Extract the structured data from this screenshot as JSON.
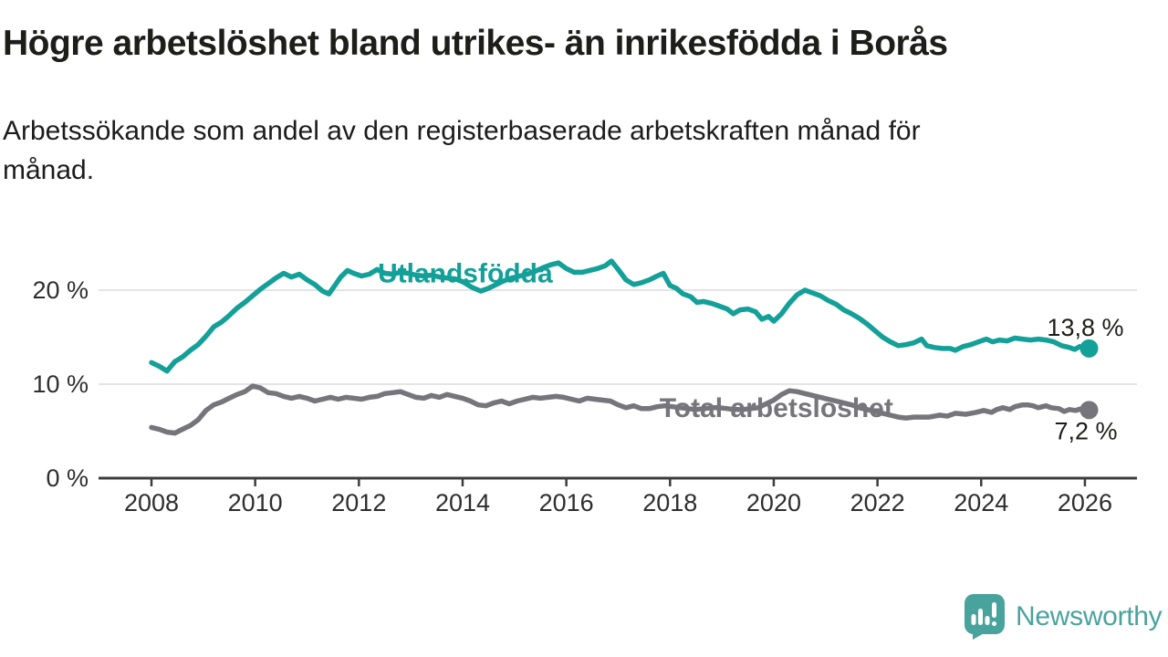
{
  "chart_data": {
    "type": "line",
    "title": "Högre arbetslöshet bland utrikes- än inrikesfödda i Borås",
    "subtitle_lines": [
      "Arbetssökande som andel av den registerbaserade arbetskraften månad för",
      "månad."
    ],
    "unit": "%",
    "xlabel": "",
    "ylabel": "",
    "xlim": [
      2007.9,
      2027.0
    ],
    "ylim": [
      0,
      25
    ],
    "grid": "horizontal",
    "x_ticks": [
      2008,
      2010,
      2012,
      2014,
      2016,
      2018,
      2020,
      2022,
      2024,
      2026
    ],
    "y_ticks": [
      {
        "value": 0,
        "label": "0 %"
      },
      {
        "value": 10,
        "label": "10 %"
      },
      {
        "value": 20,
        "label": "20 %"
      }
    ],
    "series": [
      {
        "name": "Utlandsfödda",
        "slug": "utlandsfodda",
        "color": "#13a098",
        "end_label": "13,8 %",
        "end_value": 13.8,
        "end_label_side": "above",
        "label_at": {
          "x": 2014.05,
          "y": 21.8
        },
        "points": [
          [
            2008.0,
            12.3
          ],
          [
            2008.15,
            11.9
          ],
          [
            2008.3,
            11.4
          ],
          [
            2008.45,
            12.4
          ],
          [
            2008.6,
            12.9
          ],
          [
            2008.75,
            13.6
          ],
          [
            2008.9,
            14.2
          ],
          [
            2009.05,
            15.1
          ],
          [
            2009.2,
            16.1
          ],
          [
            2009.35,
            16.6
          ],
          [
            2009.5,
            17.3
          ],
          [
            2009.65,
            18.1
          ],
          [
            2009.8,
            18.7
          ],
          [
            2009.95,
            19.4
          ],
          [
            2010.1,
            20.1
          ],
          [
            2010.25,
            20.7
          ],
          [
            2010.4,
            21.3
          ],
          [
            2010.55,
            21.8
          ],
          [
            2010.7,
            21.4
          ],
          [
            2010.85,
            21.7
          ],
          [
            2011.0,
            21.1
          ],
          [
            2011.15,
            20.6
          ],
          [
            2011.3,
            19.9
          ],
          [
            2011.42,
            19.6
          ],
          [
            2011.55,
            20.6
          ],
          [
            2011.65,
            21.4
          ],
          [
            2011.78,
            22.1
          ],
          [
            2011.9,
            21.8
          ],
          [
            2012.05,
            21.5
          ],
          [
            2012.2,
            21.7
          ],
          [
            2012.35,
            22.2
          ],
          [
            2012.5,
            21.8
          ],
          [
            2012.65,
            21.7
          ],
          [
            2012.8,
            21.9
          ],
          [
            2012.95,
            21.8
          ],
          [
            2013.1,
            21.6
          ],
          [
            2013.25,
            21.5
          ],
          [
            2013.4,
            21.6
          ],
          [
            2013.55,
            21.4
          ],
          [
            2013.7,
            21.3
          ],
          [
            2013.85,
            21.2
          ],
          [
            2014.0,
            20.9
          ],
          [
            2014.18,
            20.3
          ],
          [
            2014.35,
            19.9
          ],
          [
            2014.5,
            20.2
          ],
          [
            2014.65,
            20.6
          ],
          [
            2014.8,
            21.0
          ],
          [
            2014.95,
            21.3
          ],
          [
            2015.1,
            21.5
          ],
          [
            2015.25,
            21.7
          ],
          [
            2015.4,
            22.0
          ],
          [
            2015.55,
            22.4
          ],
          [
            2015.7,
            22.7
          ],
          [
            2015.85,
            22.9
          ],
          [
            2016.0,
            22.3
          ],
          [
            2016.15,
            21.9
          ],
          [
            2016.3,
            21.9
          ],
          [
            2016.45,
            22.1
          ],
          [
            2016.6,
            22.3
          ],
          [
            2016.75,
            22.6
          ],
          [
            2016.87,
            23.1
          ],
          [
            2017.0,
            22.2
          ],
          [
            2017.15,
            21.1
          ],
          [
            2017.3,
            20.6
          ],
          [
            2017.45,
            20.8
          ],
          [
            2017.6,
            21.1
          ],
          [
            2017.75,
            21.5
          ],
          [
            2017.87,
            21.8
          ],
          [
            2018.0,
            20.5
          ],
          [
            2018.12,
            20.2
          ],
          [
            2018.25,
            19.6
          ],
          [
            2018.4,
            19.3
          ],
          [
            2018.52,
            18.7
          ],
          [
            2018.65,
            18.8
          ],
          [
            2018.8,
            18.6
          ],
          [
            2018.95,
            18.3
          ],
          [
            2019.1,
            18.0
          ],
          [
            2019.22,
            17.5
          ],
          [
            2019.35,
            17.9
          ],
          [
            2019.5,
            18.0
          ],
          [
            2019.65,
            17.7
          ],
          [
            2019.77,
            16.9
          ],
          [
            2019.9,
            17.2
          ],
          [
            2020.0,
            16.7
          ],
          [
            2020.15,
            17.5
          ],
          [
            2020.3,
            18.6
          ],
          [
            2020.45,
            19.5
          ],
          [
            2020.6,
            20.0
          ],
          [
            2020.75,
            19.7
          ],
          [
            2020.9,
            19.4
          ],
          [
            2021.05,
            18.9
          ],
          [
            2021.2,
            18.5
          ],
          [
            2021.35,
            17.9
          ],
          [
            2021.5,
            17.5
          ],
          [
            2021.65,
            17.0
          ],
          [
            2021.8,
            16.4
          ],
          [
            2021.95,
            15.7
          ],
          [
            2022.1,
            15.0
          ],
          [
            2022.25,
            14.5
          ],
          [
            2022.4,
            14.1
          ],
          [
            2022.55,
            14.2
          ],
          [
            2022.7,
            14.4
          ],
          [
            2022.85,
            14.8
          ],
          [
            2022.95,
            14.1
          ],
          [
            2023.1,
            13.9
          ],
          [
            2023.25,
            13.8
          ],
          [
            2023.4,
            13.8
          ],
          [
            2023.5,
            13.6
          ],
          [
            2023.65,
            14.0
          ],
          [
            2023.8,
            14.2
          ],
          [
            2023.95,
            14.5
          ],
          [
            2024.1,
            14.8
          ],
          [
            2024.22,
            14.5
          ],
          [
            2024.35,
            14.7
          ],
          [
            2024.5,
            14.6
          ],
          [
            2024.65,
            14.9
          ],
          [
            2024.8,
            14.8
          ],
          [
            2024.95,
            14.7
          ],
          [
            2025.1,
            14.8
          ],
          [
            2025.25,
            14.7
          ],
          [
            2025.4,
            14.5
          ],
          [
            2025.55,
            14.1
          ],
          [
            2025.7,
            13.9
          ],
          [
            2025.8,
            13.7
          ],
          [
            2025.9,
            14.0
          ],
          [
            2026.0,
            13.9
          ],
          [
            2026.08,
            13.8
          ]
        ]
      },
      {
        "name": "Total arbetslöshet",
        "slug": "total-arbetsloshet",
        "color": "#76757c",
        "end_label": "7,2 %",
        "end_value": 7.2,
        "end_label_side": "below",
        "label_at": {
          "x": 2020.05,
          "y": 7.48
        },
        "points": [
          [
            2008.0,
            5.4
          ],
          [
            2008.15,
            5.2
          ],
          [
            2008.3,
            4.9
          ],
          [
            2008.45,
            4.8
          ],
          [
            2008.6,
            5.2
          ],
          [
            2008.75,
            5.6
          ],
          [
            2008.9,
            6.2
          ],
          [
            2009.05,
            7.2
          ],
          [
            2009.2,
            7.8
          ],
          [
            2009.35,
            8.1
          ],
          [
            2009.5,
            8.5
          ],
          [
            2009.65,
            8.9
          ],
          [
            2009.8,
            9.2
          ],
          [
            2009.95,
            9.8
          ],
          [
            2010.1,
            9.6
          ],
          [
            2010.25,
            9.1
          ],
          [
            2010.4,
            9.0
          ],
          [
            2010.55,
            8.7
          ],
          [
            2010.7,
            8.5
          ],
          [
            2010.85,
            8.7
          ],
          [
            2011.0,
            8.5
          ],
          [
            2011.15,
            8.2
          ],
          [
            2011.3,
            8.4
          ],
          [
            2011.45,
            8.6
          ],
          [
            2011.6,
            8.4
          ],
          [
            2011.75,
            8.6
          ],
          [
            2011.9,
            8.5
          ],
          [
            2012.05,
            8.4
          ],
          [
            2012.2,
            8.6
          ],
          [
            2012.35,
            8.7
          ],
          [
            2012.5,
            9.0
          ],
          [
            2012.65,
            9.1
          ],
          [
            2012.8,
            9.2
          ],
          [
            2012.95,
            8.9
          ],
          [
            2013.1,
            8.6
          ],
          [
            2013.25,
            8.5
          ],
          [
            2013.4,
            8.8
          ],
          [
            2013.55,
            8.6
          ],
          [
            2013.7,
            8.9
          ],
          [
            2013.85,
            8.7
          ],
          [
            2014.0,
            8.5
          ],
          [
            2014.15,
            8.2
          ],
          [
            2014.3,
            7.8
          ],
          [
            2014.45,
            7.7
          ],
          [
            2014.6,
            8.0
          ],
          [
            2014.75,
            8.2
          ],
          [
            2014.9,
            7.9
          ],
          [
            2015.05,
            8.2
          ],
          [
            2015.2,
            8.4
          ],
          [
            2015.35,
            8.6
          ],
          [
            2015.5,
            8.5
          ],
          [
            2015.65,
            8.6
          ],
          [
            2015.8,
            8.7
          ],
          [
            2015.95,
            8.6
          ],
          [
            2016.1,
            8.4
          ],
          [
            2016.25,
            8.2
          ],
          [
            2016.4,
            8.5
          ],
          [
            2016.55,
            8.4
          ],
          [
            2016.7,
            8.3
          ],
          [
            2016.85,
            8.2
          ],
          [
            2017.0,
            7.8
          ],
          [
            2017.15,
            7.5
          ],
          [
            2017.3,
            7.7
          ],
          [
            2017.45,
            7.4
          ],
          [
            2017.6,
            7.4
          ],
          [
            2017.75,
            7.6
          ],
          [
            2017.9,
            7.7
          ],
          [
            2018.05,
            7.6
          ],
          [
            2018.2,
            7.5
          ],
          [
            2018.35,
            7.4
          ],
          [
            2018.5,
            7.3
          ],
          [
            2018.65,
            7.4
          ],
          [
            2018.8,
            7.5
          ],
          [
            2018.95,
            7.5
          ],
          [
            2019.1,
            7.4
          ],
          [
            2019.25,
            7.3
          ],
          [
            2019.4,
            7.3
          ],
          [
            2019.55,
            7.4
          ],
          [
            2019.7,
            7.5
          ],
          [
            2019.85,
            7.9
          ],
          [
            2020.0,
            8.3
          ],
          [
            2020.15,
            8.9
          ],
          [
            2020.3,
            9.3
          ],
          [
            2020.45,
            9.2
          ],
          [
            2020.6,
            9.0
          ],
          [
            2020.75,
            8.8
          ],
          [
            2020.9,
            8.6
          ],
          [
            2021.05,
            8.4
          ],
          [
            2021.2,
            8.2
          ],
          [
            2021.35,
            8.0
          ],
          [
            2021.5,
            7.8
          ],
          [
            2021.65,
            7.5
          ],
          [
            2021.8,
            7.3
          ],
          [
            2021.95,
            7.1
          ],
          [
            2022.1,
            6.9
          ],
          [
            2022.25,
            6.7
          ],
          [
            2022.4,
            6.5
          ],
          [
            2022.55,
            6.4
          ],
          [
            2022.7,
            6.5
          ],
          [
            2022.85,
            6.5
          ],
          [
            2023.0,
            6.5
          ],
          [
            2023.2,
            6.7
          ],
          [
            2023.35,
            6.6
          ],
          [
            2023.5,
            6.9
          ],
          [
            2023.7,
            6.8
          ],
          [
            2023.9,
            7.0
          ],
          [
            2024.05,
            7.2
          ],
          [
            2024.2,
            7.0
          ],
          [
            2024.3,
            7.3
          ],
          [
            2024.42,
            7.5
          ],
          [
            2024.55,
            7.3
          ],
          [
            2024.65,
            7.6
          ],
          [
            2024.8,
            7.8
          ],
          [
            2024.9,
            7.8
          ],
          [
            2025.0,
            7.7
          ],
          [
            2025.1,
            7.5
          ],
          [
            2025.25,
            7.7
          ],
          [
            2025.35,
            7.5
          ],
          [
            2025.5,
            7.4
          ],
          [
            2025.6,
            7.1
          ],
          [
            2025.7,
            7.3
          ],
          [
            2025.82,
            7.2
          ],
          [
            2025.94,
            7.4
          ],
          [
            2026.08,
            7.25
          ]
        ]
      }
    ],
    "legend_position": "inline-labels"
  },
  "brand": {
    "name": "Newsworthy",
    "color": "#49a39d"
  },
  "colors": {
    "background": "#ffffff",
    "title_text": "#1d1d1b",
    "axis_text": "#2e2e2e",
    "value_label_text": "#1d1d1b",
    "gridline": "#dcdcdc",
    "axis_line": "#3d3d3d"
  }
}
